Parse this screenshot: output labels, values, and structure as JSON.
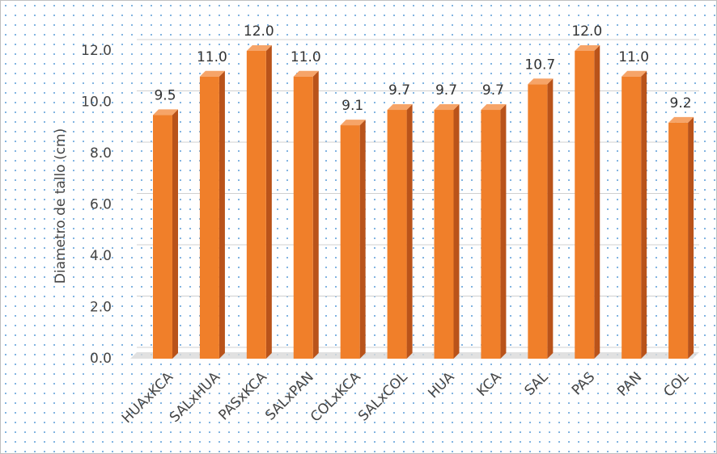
{
  "chart_data": {
    "type": "bar3d",
    "y_label": "Diametro de tallo (cm)",
    "categories": [
      "HUAxKCA",
      "SALxHUA",
      "PASxKCA",
      "SALxPAN",
      "COLxKCA",
      "SALxCOL",
      "HUA",
      "KCA",
      "SAL",
      "PAS",
      "PAN",
      "COL"
    ],
    "values": [
      9.5,
      11.0,
      12.0,
      11.0,
      9.1,
      9.7,
      9.7,
      9.7,
      10.7,
      12.0,
      11.0,
      9.2
    ],
    "value_labels": [
      "9.5",
      "11.0",
      "12.0",
      "11.0",
      "9.1",
      "9.7",
      "9.7",
      "9.7",
      "10.7",
      "12.0",
      "11.0",
      "9.2"
    ],
    "color": "#f07f2a",
    "ylim": [
      0,
      12
    ],
    "yticks": [
      {
        "value": 0,
        "label": "0.0"
      },
      {
        "value": 2,
        "label": "2.0"
      },
      {
        "value": 4,
        "label": "4.0"
      },
      {
        "value": 6,
        "label": "6.0"
      },
      {
        "value": 8,
        "label": "8.0"
      },
      {
        "value": 10,
        "label": "10.0"
      },
      {
        "value": 12,
        "label": "12.0"
      }
    ],
    "grid": true
  }
}
